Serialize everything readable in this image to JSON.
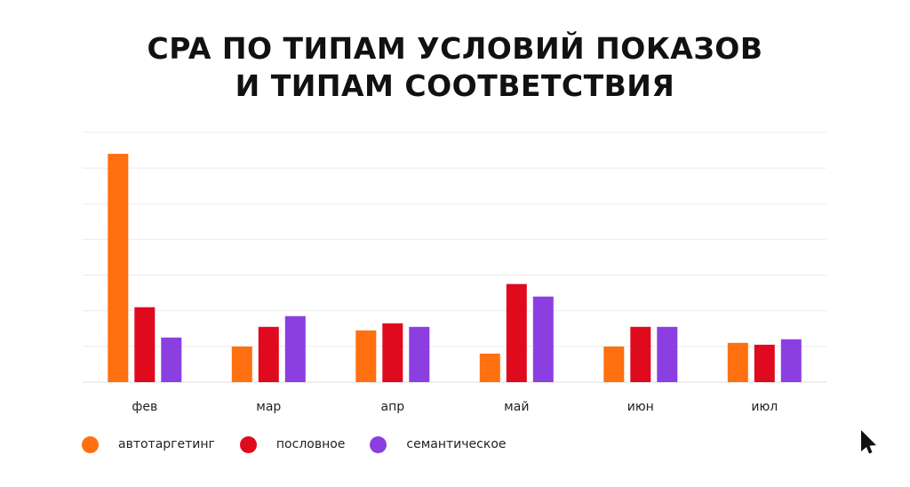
{
  "title": {
    "line1": "CPA ПО ТИПАМ УСЛОВИЙ ПОКАЗОВ",
    "line2": "И ТИПАМ СООТВЕТСТВИЯ"
  },
  "chart_data": {
    "type": "bar",
    "title": "CPA ПО ТИПАМ УСЛОВИЙ ПОКАЗОВ И ТИПАМ СООТВЕТСТВИЯ",
    "xlabel": "",
    "ylabel": "",
    "categories": [
      "фев",
      "мар",
      "апр",
      "май",
      "июн",
      "июл"
    ],
    "ylim": [
      0,
      7
    ],
    "grid": true,
    "y_tick_labels_shown": false,
    "legend_position": "bottom-left",
    "series": [
      {
        "name": "автотаргетинг",
        "color": "#ff7010",
        "values": [
          6.4,
          1.0,
          1.45,
          0.8,
          1.0,
          1.1
        ]
      },
      {
        "name": "пословное",
        "color": "#e00a1e",
        "values": [
          2.1,
          1.55,
          1.65,
          2.75,
          1.55,
          1.05
        ]
      },
      {
        "name": "семантическое",
        "color": "#8b3fe0",
        "values": [
          1.25,
          1.85,
          1.55,
          2.4,
          1.55,
          1.2
        ]
      }
    ]
  },
  "icons": {
    "logo": "cursor-arrow-logo-icon"
  }
}
